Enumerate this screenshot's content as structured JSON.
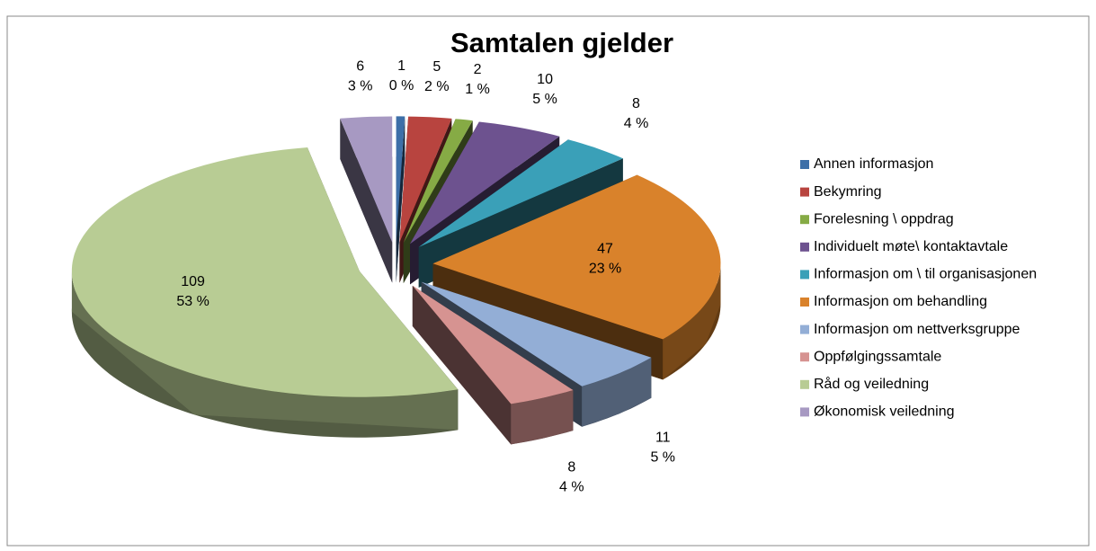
{
  "chart_data": {
    "type": "pie",
    "title": "Samtalen gjelder",
    "categories": [
      "Annen informasjon",
      "Bekymring",
      "Forelesning \\ oppdrag",
      "Individuelt møte\\ kontaktavtale",
      "Informasjon om \\ til organisasjonen",
      "Informasjon om behandling",
      "Informasjon om nettverksgruppe",
      "Oppfølgingssamtale",
      "Råd og veiledning",
      "Økonomisk veiledning"
    ],
    "values": [
      1,
      5,
      2,
      10,
      8,
      47,
      11,
      8,
      109,
      6
    ],
    "percent_labels": [
      "0 %",
      "2 %",
      "1 %",
      "5 %",
      "4 %",
      "23 %",
      "5 %",
      "4 %",
      "53 %",
      "3 %"
    ],
    "colors": [
      "#3d6fa8",
      "#b8443f",
      "#86ab45",
      "#6d528f",
      "#3aa0b8",
      "#d9822b",
      "#93aed6",
      "#d69391",
      "#b8cc94",
      "#a799c2"
    ],
    "legend": "right",
    "exploded": true
  }
}
